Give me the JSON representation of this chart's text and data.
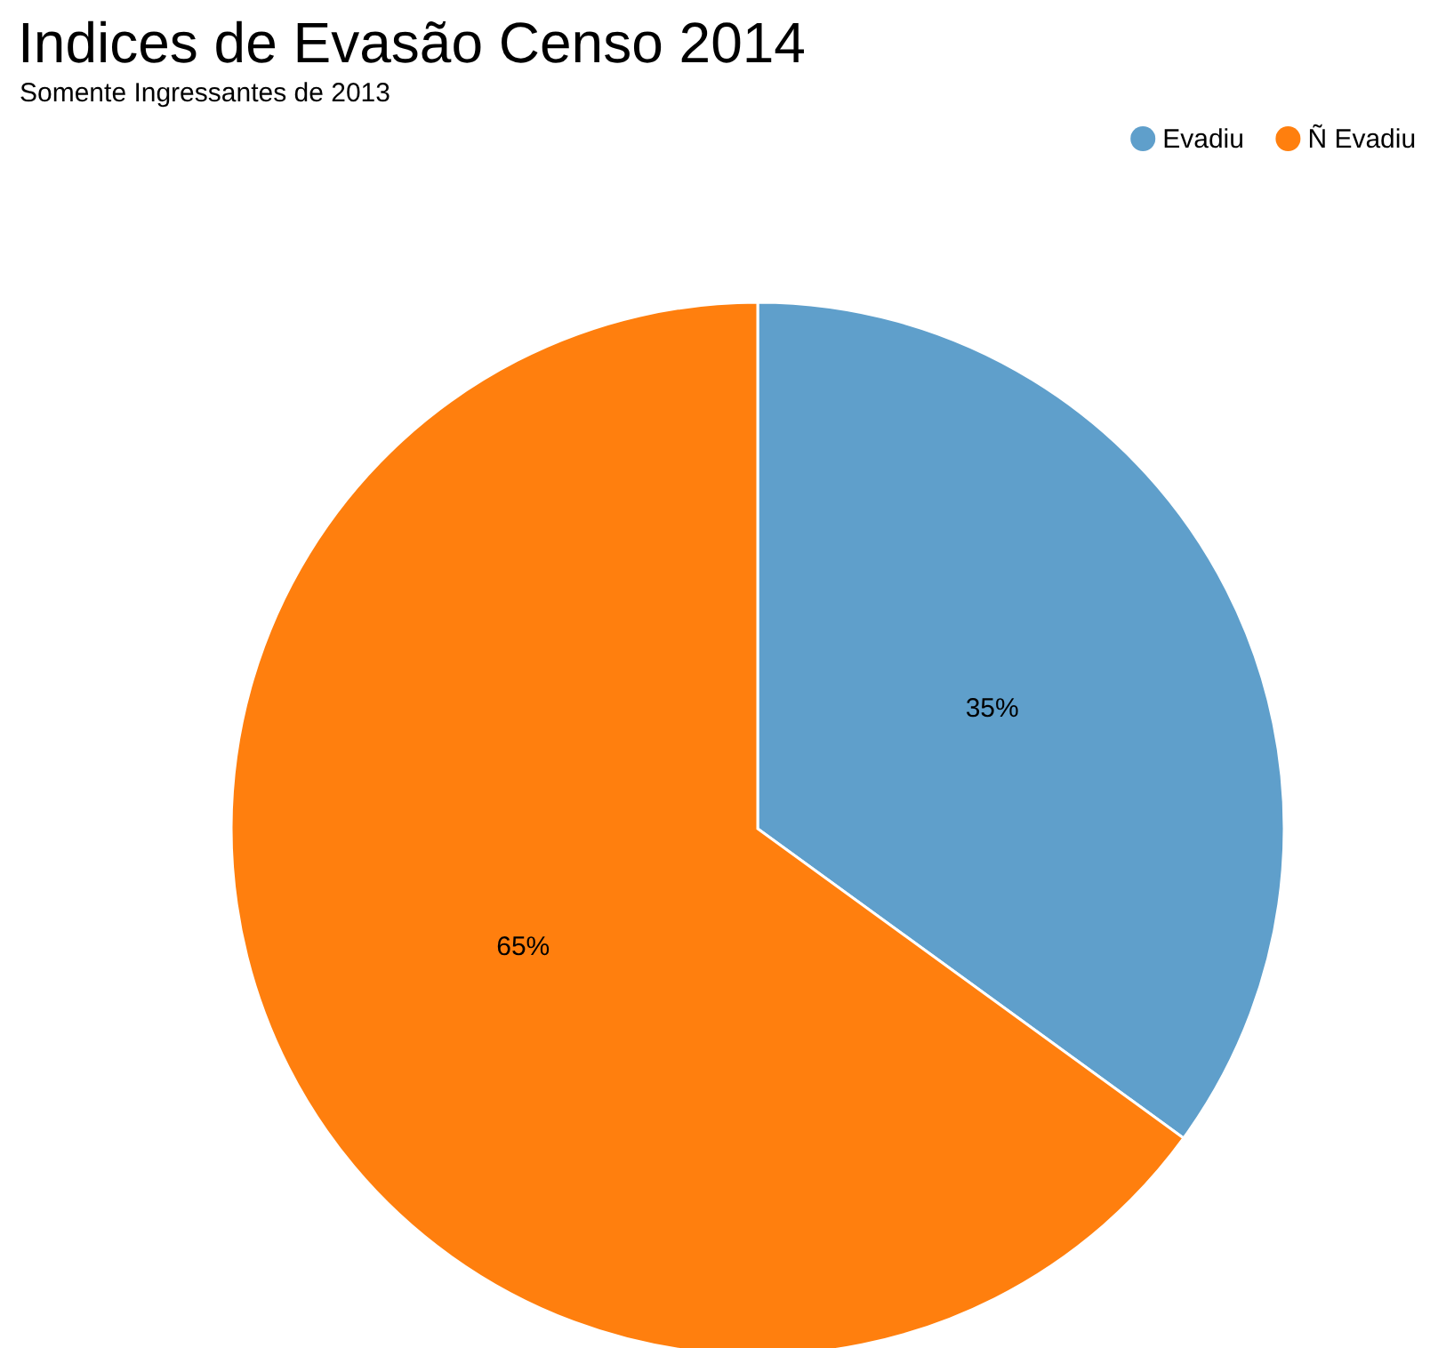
{
  "chart_data": {
    "type": "pie",
    "title": "Indices de Evasão Censo 2014",
    "subtitle": "Somente Ingressantes de 2013",
    "categories": [
      "Evadiu",
      "Ñ Evadiu"
    ],
    "values": [
      35,
      65
    ],
    "colors": [
      "#5f9fcb",
      "#ff7f0e"
    ],
    "value_labels": [
      "35%",
      "65%"
    ],
    "legend": "top right"
  }
}
